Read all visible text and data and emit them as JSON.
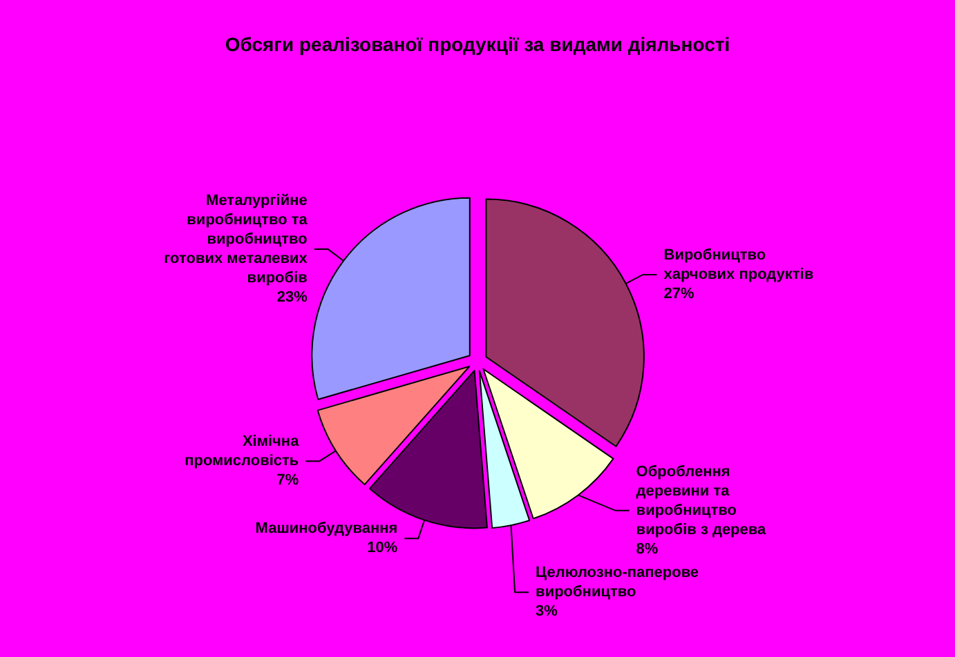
{
  "chart_data": {
    "type": "pie",
    "title": "Обсяги реалізованої продукції за видами діяльності",
    "categories": [
      "Виробництво харчових продуктів",
      "Оброблення деревини та виробництво виробів з дерева",
      "Целюлозно-паперове виробництво",
      "Машинобудування",
      "Хімічна промисловість",
      "Металургійне виробництво та виробництво готових металевих виробів"
    ],
    "values": [
      27,
      8,
      3,
      10,
      7,
      23
    ],
    "value_labels": [
      "27%",
      "8%",
      "3%",
      "10%",
      "7%",
      "23%"
    ],
    "colors": [
      "#993366",
      "#ffffcc",
      "#ccffff",
      "#660066",
      "#ff8080",
      "#9999ff"
    ]
  }
}
